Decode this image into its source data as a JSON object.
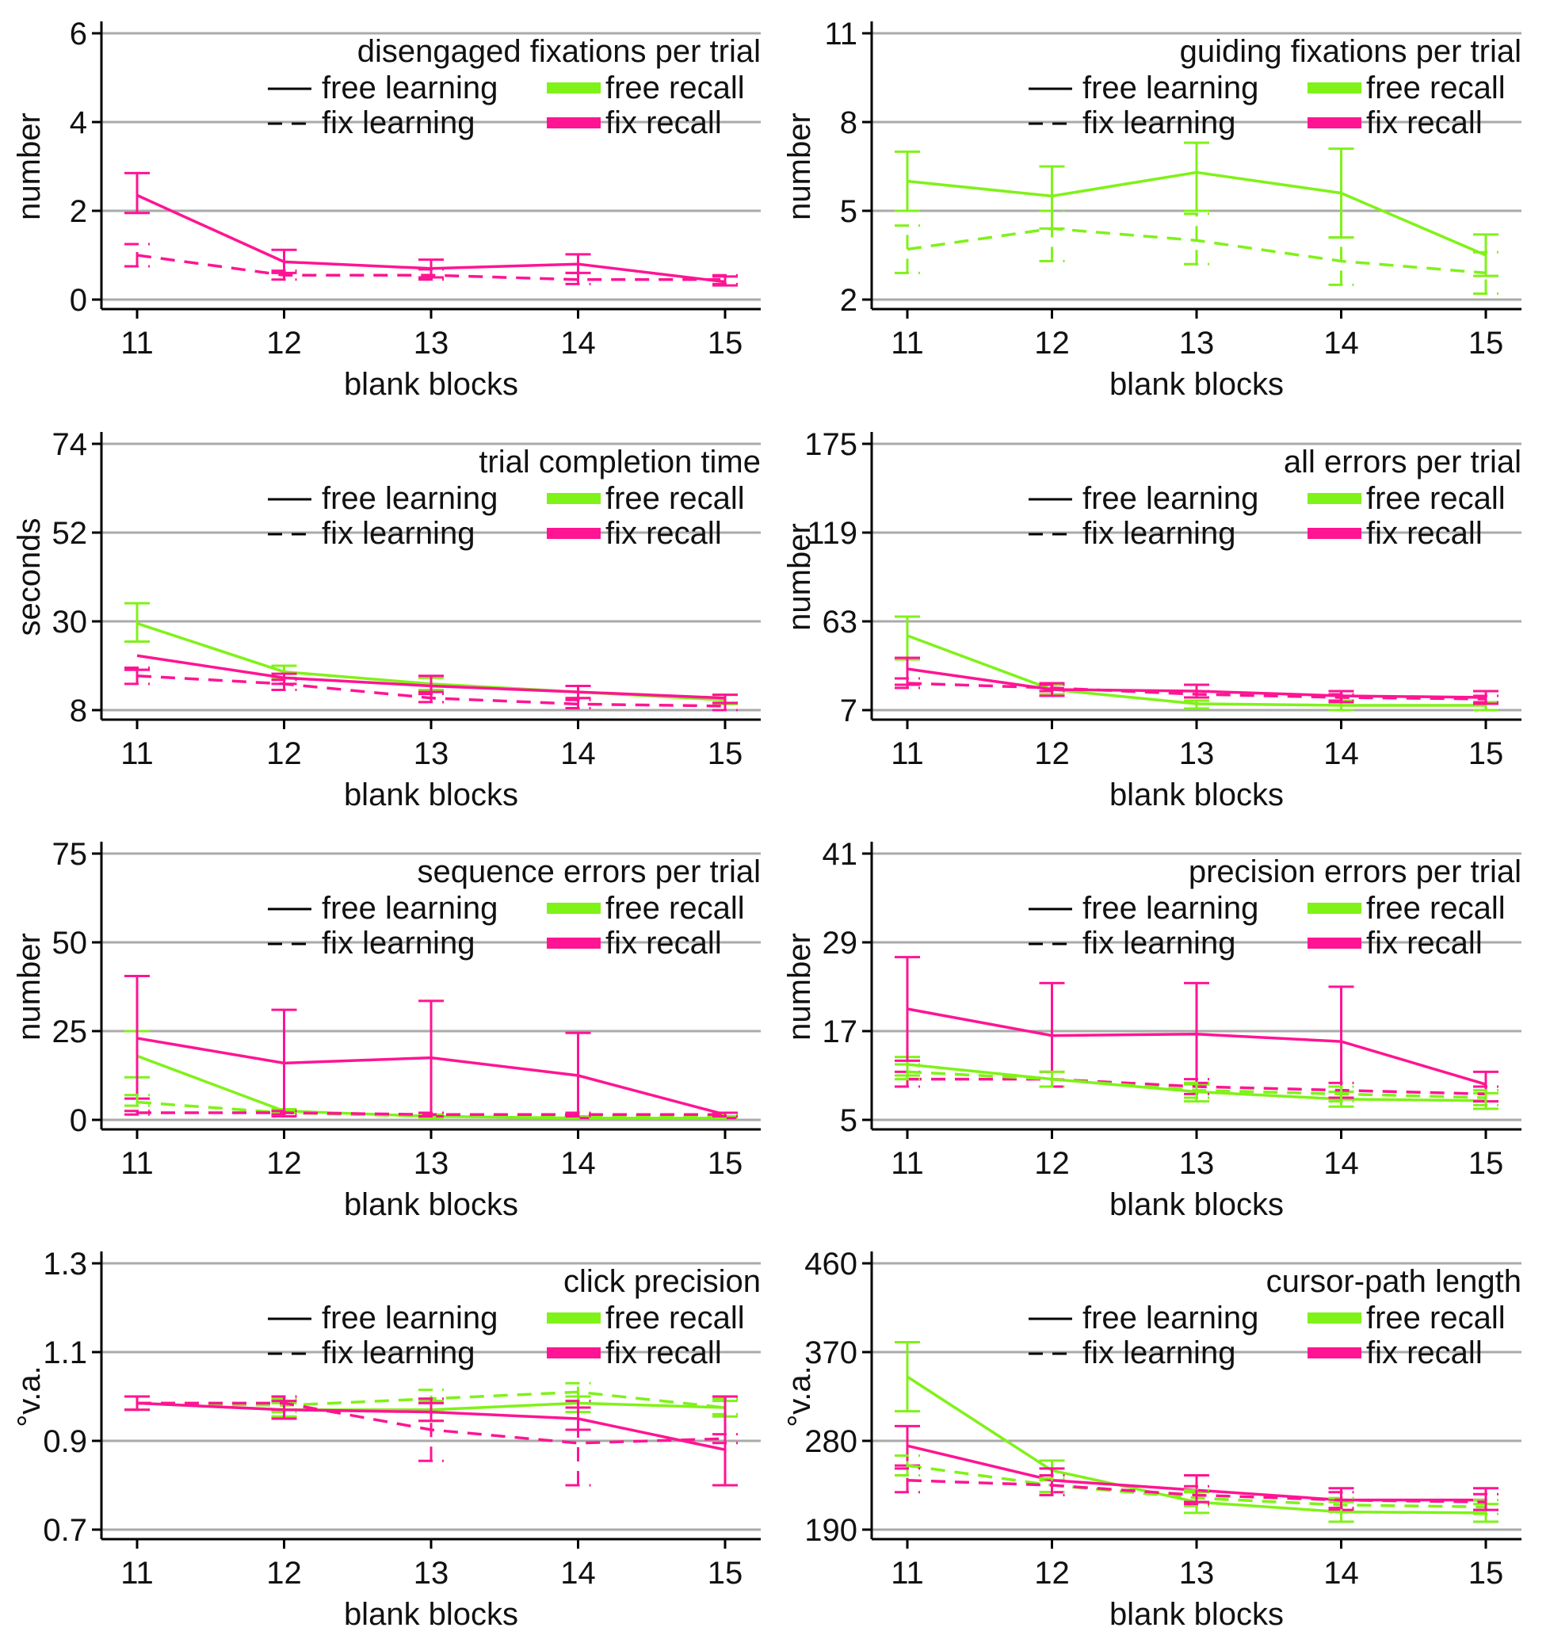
{
  "figure": {
    "colors": {
      "free": "#7FF218",
      "fix": "#FF1493",
      "grid": "#AAAAAA",
      "axis": "#000000"
    },
    "legend": {
      "free_learning": "free learning",
      "fix_learning": "fix learning",
      "free_recall": "free recall",
      "fix_recall": "fix recall"
    }
  },
  "chart_data": [
    {
      "type": "line",
      "title": "disengaged fixations per trial",
      "xlabel": "blank blocks",
      "ylabel": "number",
      "categories": [
        "11",
        "12",
        "13",
        "14",
        "15"
      ],
      "yticks": [
        0,
        2,
        4,
        6
      ],
      "ytick_labels": [
        "0",
        "2",
        "4",
        "6"
      ],
      "ylim": [
        0,
        6
      ],
      "series": [
        {
          "name": "free learning / fix recall",
          "style": "solid",
          "color": "fix",
          "values": [
            2.35,
            0.85,
            0.7,
            0.8,
            0.4
          ],
          "err_lo": [
            1.95,
            0.6,
            0.5,
            0.6,
            0.32
          ],
          "err_hi": [
            2.85,
            1.12,
            0.9,
            1.02,
            0.52
          ]
        },
        {
          "name": "fix learning / fix recall",
          "style": "dashed",
          "color": "fix",
          "values": [
            1.0,
            0.55,
            0.55,
            0.45,
            0.45
          ],
          "err_lo": [
            0.75,
            0.45,
            0.45,
            0.35,
            0.35
          ],
          "err_hi": [
            1.25,
            0.65,
            0.68,
            0.6,
            0.55
          ]
        }
      ]
    },
    {
      "type": "line",
      "title": "guiding fixations per trial",
      "xlabel": "blank blocks",
      "ylabel": "number",
      "categories": [
        "11",
        "12",
        "13",
        "14",
        "15"
      ],
      "yticks": [
        2,
        5,
        8,
        11
      ],
      "ytick_labels": [
        "2",
        "5",
        "8",
        "11"
      ],
      "ylim": [
        2,
        11
      ],
      "series": [
        {
          "name": "free learning / free recall",
          "style": "solid",
          "color": "free",
          "values": [
            6.0,
            5.5,
            6.3,
            5.6,
            3.5
          ],
          "err_lo": [
            5.0,
            4.4,
            5.0,
            4.1,
            2.8
          ],
          "err_hi": [
            7.0,
            6.5,
            7.3,
            7.1,
            4.2
          ]
        },
        {
          "name": "fix learning / free recall",
          "style": "dashed",
          "color": "free",
          "values": [
            3.7,
            4.4,
            4.0,
            3.3,
            2.9
          ],
          "err_lo": [
            2.9,
            3.3,
            3.2,
            2.5,
            2.2
          ],
          "err_hi": [
            4.5,
            5.0,
            4.9,
            4.1,
            3.6
          ]
        }
      ]
    },
    {
      "type": "line",
      "title": "trial completion time",
      "xlabel": "blank blocks",
      "ylabel": "seconds",
      "categories": [
        "11",
        "12",
        "13",
        "14",
        "15"
      ],
      "yticks": [
        8,
        30,
        52,
        74
      ],
      "ytick_labels": [
        "8",
        "30",
        "52",
        "74"
      ],
      "ylim": [
        8,
        74
      ],
      "series": [
        {
          "name": "free learning / free recall",
          "style": "solid",
          "color": "free",
          "values": [
            29.5,
            17.5,
            14.5,
            12.5,
            10.5
          ],
          "err_lo": [
            25.0,
            16.0,
            13.0,
            11.0,
            9.5
          ],
          "err_hi": [
            34.5,
            19.0,
            16.0,
            14.0,
            11.8
          ]
        },
        {
          "name": "free learning / fix recall",
          "style": "solid",
          "color": "fix",
          "values": [
            21.5,
            16.0,
            14.0,
            12.5,
            11.0
          ],
          "err_lo": [
            18.0,
            14.5,
            12.5,
            11.0,
            9.8
          ],
          "err_hi": [
            18.0,
            17.0,
            16.5,
            14.0,
            11.8
          ]
        },
        {
          "name": "fix learning / fix recall",
          "style": "dashed",
          "color": "fix",
          "values": [
            16.5,
            14.5,
            11.0,
            9.5,
            9.0
          ],
          "err_lo": [
            14.5,
            13.0,
            10.0,
            8.5,
            8.0
          ],
          "err_hi": [
            18.5,
            15.5,
            12.0,
            10.5,
            9.8
          ]
        }
      ]
    },
    {
      "type": "line",
      "title": "all errors per trial",
      "xlabel": "blank blocks",
      "ylabel": "number",
      "categories": [
        "11",
        "12",
        "13",
        "14",
        "15"
      ],
      "yticks": [
        7,
        63,
        119,
        175
      ],
      "ytick_labels": [
        "7",
        "63",
        "119",
        "175"
      ],
      "ylim": [
        7,
        175
      ],
      "series": [
        {
          "name": "free learning / free recall",
          "style": "solid",
          "color": "free",
          "values": [
            54,
            20,
            11,
            10,
            10
          ],
          "err_lo": [
            39,
            17,
            8,
            7,
            7
          ],
          "err_hi": [
            66,
            23,
            13,
            13,
            12
          ]
        },
        {
          "name": "free learning / fix recall",
          "style": "solid",
          "color": "fix",
          "values": [
            33,
            20,
            19,
            16,
            15
          ],
          "err_lo": [
            23,
            16,
            15,
            12,
            11
          ],
          "err_hi": [
            40,
            24,
            23,
            19,
            19
          ]
        },
        {
          "name": "fix learning / fix recall",
          "style": "dashed",
          "color": "fix",
          "values": [
            24,
            21,
            17,
            15,
            14
          ],
          "err_lo": [
            21,
            19,
            15,
            13,
            12
          ],
          "err_hi": [
            27,
            23,
            19,
            17,
            16
          ]
        }
      ]
    },
    {
      "type": "line",
      "title": "sequence errors per trial",
      "xlabel": "blank blocks",
      "ylabel": "number",
      "categories": [
        "11",
        "12",
        "13",
        "14",
        "15"
      ],
      "yticks": [
        0,
        25,
        50,
        75
      ],
      "ytick_labels": [
        "0",
        "25",
        "50",
        "75"
      ],
      "ylim": [
        0,
        75
      ],
      "series": [
        {
          "name": "free learning / free recall",
          "style": "solid",
          "color": "free",
          "values": [
            18,
            2.5,
            1,
            0.5,
            0.5
          ],
          "err_lo": [
            12,
            2,
            0.5,
            0.3,
            0.3
          ],
          "err_hi": [
            25,
            3,
            1.5,
            1,
            1
          ]
        },
        {
          "name": "free learning / fix recall",
          "style": "solid",
          "color": "fix",
          "values": [
            23,
            16,
            17.5,
            12.5,
            1.5
          ],
          "err_lo": [
            6,
            1,
            1,
            0.5,
            0.5
          ],
          "err_hi": [
            40.5,
            31,
            33.5,
            24.5,
            2
          ]
        },
        {
          "name": "fix learning / free recall",
          "style": "dashed",
          "color": "free",
          "values": [
            5,
            2,
            1,
            1,
            1
          ],
          "err_lo": [
            4,
            1.5,
            0.5,
            0.5,
            0.5
          ],
          "err_hi": [
            7,
            2.5,
            1.5,
            1.5,
            1.5
          ]
        },
        {
          "name": "fix learning / fix recall",
          "style": "dashed",
          "color": "fix",
          "values": [
            2,
            2,
            1.5,
            1.5,
            1.5
          ],
          "err_lo": [
            1.5,
            1.5,
            1,
            1,
            1
          ],
          "err_hi": [
            2.5,
            2.5,
            2,
            2,
            2
          ]
        }
      ]
    },
    {
      "type": "line",
      "title": "precision errors per trial",
      "xlabel": "blank blocks",
      "ylabel": "number",
      "categories": [
        "11",
        "12",
        "13",
        "14",
        "15"
      ],
      "yticks": [
        5,
        17,
        29,
        41
      ],
      "ytick_labels": [
        "5",
        "17",
        "29",
        "41"
      ],
      "ylim": [
        5,
        41
      ],
      "series": [
        {
          "name": "free learning / free recall",
          "style": "solid",
          "color": "free",
          "values": [
            12.5,
            10.5,
            8.8,
            7.8,
            7.6
          ],
          "err_lo": [
            11,
            9.5,
            7.5,
            6.8,
            6.5
          ],
          "err_hi": [
            13.5,
            11.5,
            9.8,
            8.8,
            8.6
          ]
        },
        {
          "name": "free learning / fix recall",
          "style": "solid",
          "color": "fix",
          "values": [
            20,
            16.4,
            16.6,
            15.6,
            9.8
          ],
          "err_lo": [
            13,
            9.5,
            10,
            8,
            7.5
          ],
          "err_hi": [
            27,
            23.5,
            23.5,
            23,
            11.5
          ]
        },
        {
          "name": "fix learning / fix recall",
          "style": "dashed",
          "color": "fix",
          "values": [
            10.5,
            10.5,
            9.5,
            9,
            8.5
          ],
          "err_lo": [
            9.5,
            9.5,
            8.5,
            8,
            7.5
          ],
          "err_hi": [
            11.5,
            11.5,
            10.5,
            10,
            9.5
          ]
        },
        {
          "name": "fix learning / free recall",
          "style": "dashed",
          "color": "free",
          "values": [
            11.5,
            10.5,
            9,
            8.5,
            8
          ],
          "err_lo": [
            10.5,
            9.5,
            8,
            7.5,
            7
          ],
          "err_hi": [
            12.5,
            11.5,
            10,
            9.5,
            9
          ]
        }
      ]
    },
    {
      "type": "line",
      "title": "click precision",
      "xlabel": "blank blocks",
      "ylabel": "°v.a.",
      "categories": [
        "11",
        "12",
        "13",
        "14",
        "15"
      ],
      "yticks": [
        0.7,
        0.9,
        1.1,
        1.3
      ],
      "ytick_labels": [
        "0.7",
        "0.9",
        "1.1",
        "1.3"
      ],
      "ylim": [
        0.7,
        1.3
      ],
      "series": [
        {
          "name": "free learning / free recall",
          "style": "solid",
          "color": "free",
          "values": [
            0.985,
            0.97,
            0.97,
            0.985,
            0.975
          ],
          "err_lo": [
            0.97,
            0.955,
            0.945,
            0.965,
            0.955
          ],
          "err_hi": [
            1.0,
            0.985,
            0.99,
            1.0,
            0.99
          ]
        },
        {
          "name": "fix learning / free recall",
          "style": "dashed",
          "color": "free",
          "values": [
            0.985,
            0.98,
            0.995,
            1.01,
            0.975
          ],
          "err_lo": [
            0.97,
            0.965,
            0.97,
            0.99,
            0.96
          ],
          "err_hi": [
            1.0,
            0.995,
            1.015,
            1.03,
            0.995
          ]
        },
        {
          "name": "free learning / fix recall",
          "style": "solid",
          "color": "fix",
          "values": [
            0.985,
            0.97,
            0.965,
            0.95,
            0.88
          ],
          "err_lo": [
            0.97,
            0.95,
            0.945,
            0.925,
            0.8
          ],
          "err_hi": [
            1.0,
            0.99,
            0.985,
            0.975,
            1.0
          ]
        },
        {
          "name": "fix learning / fix recall",
          "style": "dashed",
          "color": "fix",
          "values": [
            0.985,
            0.985,
            0.925,
            0.895,
            0.905
          ],
          "err_lo": [
            0.97,
            0.97,
            0.855,
            0.8,
            0.895
          ],
          "err_hi": [
            1.0,
            1.0,
            0.995,
            0.99,
            0.915
          ]
        }
      ]
    },
    {
      "type": "line",
      "title": "cursor-path length",
      "xlabel": "blank blocks",
      "ylabel": "°v.a.",
      "categories": [
        "11",
        "12",
        "13",
        "14",
        "15"
      ],
      "yticks": [
        190,
        280,
        370,
        460
      ],
      "ytick_labels": [
        "190",
        "280",
        "370",
        "460"
      ],
      "ylim": [
        190,
        460
      ],
      "series": [
        {
          "name": "free learning / free recall",
          "style": "solid",
          "color": "free",
          "values": [
            345,
            250,
            218,
            208,
            207
          ],
          "err_lo": [
            310,
            240,
            207,
            198,
            198
          ],
          "err_hi": [
            380,
            260,
            228,
            218,
            216
          ]
        },
        {
          "name": "free learning / fix recall",
          "style": "solid",
          "color": "fix",
          "values": [
            275,
            240,
            230,
            220,
            220
          ],
          "err_lo": [
            255,
            228,
            218,
            210,
            210
          ],
          "err_hi": [
            295,
            252,
            245,
            232,
            232
          ]
        },
        {
          "name": "fix learning / free recall",
          "style": "dashed",
          "color": "free",
          "values": [
            255,
            235,
            222,
            215,
            213
          ],
          "err_lo": [
            245,
            228,
            214,
            208,
            206
          ],
          "err_hi": [
            265,
            242,
            230,
            222,
            220
          ]
        },
        {
          "name": "fix learning / fix recall",
          "style": "dashed",
          "color": "fix",
          "values": [
            240,
            235,
            225,
            220,
            218
          ],
          "err_lo": [
            228,
            225,
            216,
            212,
            210
          ],
          "err_hi": [
            252,
            245,
            234,
            228,
            226
          ]
        }
      ]
    }
  ]
}
